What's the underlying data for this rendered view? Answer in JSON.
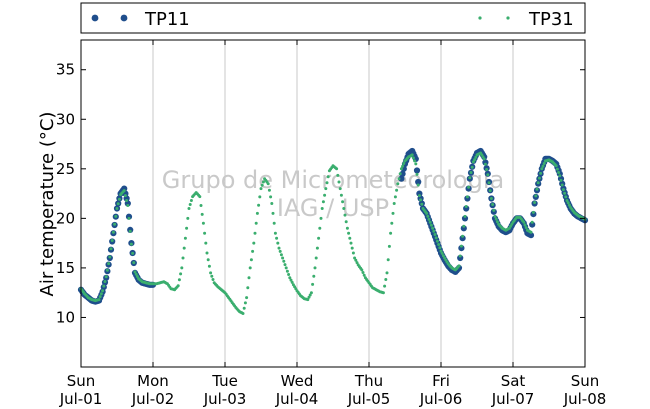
{
  "chart_data": {
    "type": "scatter",
    "title": "",
    "xlabel": "",
    "ylabel": "Air temperature (°C)",
    "ylim": [
      5,
      38
    ],
    "yticks": [
      10,
      15,
      20,
      25,
      30,
      35
    ],
    "xlim": [
      0,
      7
    ],
    "x_unit": "days from Sun Jul-01 00:00",
    "xticks": [
      {
        "day": "Sun",
        "date": "Jul-01"
      },
      {
        "day": "Mon",
        "date": "Jul-02"
      },
      {
        "day": "Tue",
        "date": "Jul-03"
      },
      {
        "day": "Wed",
        "date": "Jul-04"
      },
      {
        "day": "Thu",
        "date": "Jul-05"
      },
      {
        "day": "Fri",
        "date": "Jul-06"
      },
      {
        "day": "Sat",
        "date": "Jul-07"
      },
      {
        "day": "Sun",
        "date": "Jul-08"
      }
    ],
    "grid": "vertical",
    "legend_placement": "top (outside plot)",
    "watermark": [
      "Grupo de Micrometeorologia",
      "IAG / USP"
    ],
    "series": [
      {
        "name": "TP11",
        "color": "#1f4e8c",
        "marker": "large dot",
        "segments": [
          [
            [
              0.0,
              12.8
            ],
            [
              0.05,
              12.3
            ],
            [
              0.1,
              12.0
            ],
            [
              0.15,
              11.7
            ],
            [
              0.2,
              11.6
            ],
            [
              0.25,
              11.7
            ],
            [
              0.3,
              12.6
            ],
            [
              0.35,
              14.0
            ],
            [
              0.4,
              16.0
            ],
            [
              0.45,
              18.5
            ],
            [
              0.5,
              21.0
            ],
            [
              0.55,
              22.5
            ],
            [
              0.6,
              23.0
            ],
            [
              0.65,
              21.5
            ],
            [
              0.7,
              17.5
            ],
            [
              0.75,
              14.5
            ],
            [
              0.8,
              13.8
            ],
            [
              0.85,
              13.5
            ],
            [
              0.9,
              13.4
            ],
            [
              0.95,
              13.3
            ],
            [
              1.0,
              13.3
            ]
          ],
          [
            [
              4.45,
              24.0
            ],
            [
              4.5,
              25.5
            ],
            [
              4.55,
              26.5
            ],
            [
              4.6,
              26.8
            ],
            [
              4.65,
              26.0
            ],
            [
              4.7,
              22.5
            ],
            [
              4.75,
              21.0
            ],
            [
              4.8,
              20.5
            ],
            [
              4.85,
              19.5
            ],
            [
              4.9,
              18.5
            ],
            [
              4.95,
              17.5
            ],
            [
              5.0,
              16.5
            ],
            [
              5.05,
              15.8
            ],
            [
              5.1,
              15.2
            ],
            [
              5.15,
              14.8
            ],
            [
              5.2,
              14.6
            ],
            [
              5.25,
              15.0
            ],
            [
              5.3,
              18.0
            ],
            [
              5.35,
              21.0
            ],
            [
              5.4,
              24.0
            ],
            [
              5.45,
              25.8
            ],
            [
              5.5,
              26.6
            ],
            [
              5.55,
              26.8
            ],
            [
              5.6,
              26.2
            ],
            [
              5.65,
              24.5
            ],
            [
              5.7,
              22.0
            ],
            [
              5.75,
              20.0
            ],
            [
              5.8,
              19.2
            ],
            [
              5.85,
              18.8
            ],
            [
              5.9,
              18.6
            ],
            [
              5.95,
              18.8
            ],
            [
              6.0,
              19.5
            ],
            [
              6.05,
              20.0
            ],
            [
              6.1,
              20.0
            ],
            [
              6.15,
              19.5
            ],
            [
              6.2,
              18.5
            ],
            [
              6.25,
              18.3
            ],
            [
              6.3,
              21.5
            ],
            [
              6.35,
              23.5
            ],
            [
              6.4,
              25.0
            ],
            [
              6.45,
              26.0
            ],
            [
              6.5,
              26.0
            ],
            [
              6.55,
              25.8
            ],
            [
              6.6,
              25.5
            ],
            [
              6.65,
              24.5
            ],
            [
              6.7,
              23.0
            ],
            [
              6.75,
              21.8
            ],
            [
              6.8,
              21.0
            ],
            [
              6.85,
              20.5
            ],
            [
              6.9,
              20.2
            ],
            [
              6.95,
              20.0
            ],
            [
              7.0,
              19.8
            ]
          ]
        ]
      },
      {
        "name": "TP31",
        "color": "#3aae6e",
        "marker": "small dot",
        "segments": [
          [
            [
              0.0,
              12.9
            ],
            [
              0.05,
              12.4
            ],
            [
              0.1,
              12.0
            ],
            [
              0.15,
              11.8
            ],
            [
              0.2,
              11.7
            ],
            [
              0.25,
              11.8
            ],
            [
              0.3,
              12.7
            ],
            [
              0.35,
              14.1
            ],
            [
              0.4,
              16.1
            ],
            [
              0.45,
              18.6
            ],
            [
              0.5,
              21.0
            ],
            [
              0.55,
              22.4
            ],
            [
              0.6,
              22.8
            ],
            [
              0.65,
              21.3
            ],
            [
              0.7,
              17.4
            ],
            [
              0.75,
              14.6
            ],
            [
              0.8,
              13.9
            ],
            [
              0.85,
              13.6
            ],
            [
              0.9,
              13.5
            ],
            [
              0.95,
              13.4
            ],
            [
              1.0,
              13.4
            ],
            [
              1.05,
              13.4
            ],
            [
              1.1,
              13.5
            ],
            [
              1.15,
              13.6
            ],
            [
              1.2,
              13.4
            ],
            [
              1.25,
              12.9
            ],
            [
              1.3,
              12.8
            ],
            [
              1.35,
              13.2
            ],
            [
              1.4,
              15.0
            ],
            [
              1.45,
              18.0
            ],
            [
              1.5,
              21.0
            ],
            [
              1.55,
              22.2
            ],
            [
              1.6,
              22.6
            ],
            [
              1.65,
              22.2
            ],
            [
              1.7,
              19.5
            ],
            [
              1.75,
              16.5
            ],
            [
              1.8,
              14.5
            ],
            [
              1.85,
              13.5
            ],
            [
              1.9,
              13.1
            ],
            [
              1.95,
              12.8
            ],
            [
              2.0,
              12.5
            ],
            [
              2.05,
              12.0
            ],
            [
              2.1,
              11.5
            ],
            [
              2.15,
              11.0
            ],
            [
              2.2,
              10.6
            ],
            [
              2.25,
              10.4
            ],
            [
              2.3,
              12.0
            ],
            [
              2.35,
              15.0
            ],
            [
              2.4,
              17.5
            ],
            [
              2.45,
              20.5
            ],
            [
              2.5,
              23.0
            ],
            [
              2.55,
              24.0
            ],
            [
              2.6,
              23.5
            ],
            [
              2.65,
              21.5
            ],
            [
              2.7,
              18.5
            ],
            [
              2.75,
              17.0
            ],
            [
              2.8,
              16.0
            ],
            [
              2.85,
              15.0
            ],
            [
              2.9,
              14.0
            ],
            [
              2.95,
              13.3
            ],
            [
              3.0,
              12.7
            ],
            [
              3.05,
              12.2
            ],
            [
              3.1,
              11.9
            ],
            [
              3.15,
              11.8
            ],
            [
              3.2,
              12.5
            ],
            [
              3.25,
              15.0
            ],
            [
              3.3,
              18.0
            ],
            [
              3.35,
              21.0
            ],
            [
              3.4,
              23.0
            ],
            [
              3.45,
              24.8
            ],
            [
              3.5,
              25.3
            ],
            [
              3.55,
              25.0
            ],
            [
              3.6,
              23.0
            ],
            [
              3.65,
              21.0
            ],
            [
              3.7,
              19.0
            ],
            [
              3.75,
              17.5
            ],
            [
              3.8,
              16.0
            ],
            [
              3.85,
              15.3
            ],
            [
              3.9,
              14.8
            ],
            [
              3.95,
              14.0
            ],
            [
              4.0,
              13.5
            ],
            [
              4.05,
              13.0
            ],
            [
              4.1,
              12.8
            ],
            [
              4.15,
              12.6
            ],
            [
              4.2,
              12.5
            ],
            [
              4.25,
              14.5
            ],
            [
              4.3,
              18.5
            ],
            [
              4.35,
              21.5
            ],
            [
              4.4,
              23.5
            ],
            [
              4.45,
              25.0
            ],
            [
              4.5,
              25.8
            ],
            [
              4.55,
              26.2
            ],
            [
              4.6,
              26.4
            ],
            [
              4.65,
              25.5
            ],
            [
              4.7,
              22.3
            ],
            [
              4.75,
              21.0
            ],
            [
              4.8,
              20.5
            ],
            [
              4.85,
              19.6
            ],
            [
              4.9,
              18.7
            ],
            [
              4.95,
              17.7
            ],
            [
              5.0,
              16.7
            ],
            [
              5.05,
              16.0
            ],
            [
              5.1,
              15.4
            ],
            [
              5.15,
              15.0
            ],
            [
              5.2,
              14.8
            ],
            [
              5.25,
              15.2
            ],
            [
              5.3,
              18.2
            ],
            [
              5.35,
              21.2
            ],
            [
              5.4,
              24.1
            ],
            [
              5.45,
              25.7
            ],
            [
              5.5,
              26.4
            ],
            [
              5.55,
              26.6
            ],
            [
              5.6,
              26.0
            ],
            [
              5.65,
              24.4
            ],
            [
              5.7,
              22.0
            ],
            [
              5.75,
              20.2
            ],
            [
              5.8,
              19.4
            ],
            [
              5.85,
              19.0
            ],
            [
              5.9,
              18.8
            ],
            [
              5.95,
              19.0
            ],
            [
              6.0,
              19.6
            ],
            [
              6.05,
              20.1
            ],
            [
              6.1,
              20.1
            ],
            [
              6.15,
              19.6
            ],
            [
              6.2,
              18.8
            ],
            [
              6.25,
              18.6
            ],
            [
              6.3,
              21.6
            ],
            [
              6.35,
              23.6
            ],
            [
              6.4,
              25.0
            ],
            [
              6.45,
              25.8
            ],
            [
              6.5,
              25.9
            ],
            [
              6.55,
              25.7
            ],
            [
              6.6,
              25.3
            ],
            [
              6.65,
              24.3
            ],
            [
              6.7,
              22.9
            ],
            [
              6.75,
              21.8
            ],
            [
              6.8,
              21.1
            ],
            [
              6.85,
              20.6
            ],
            [
              6.9,
              20.3
            ],
            [
              6.95,
              20.1
            ],
            [
              7.0,
              19.9
            ]
          ]
        ]
      }
    ]
  }
}
